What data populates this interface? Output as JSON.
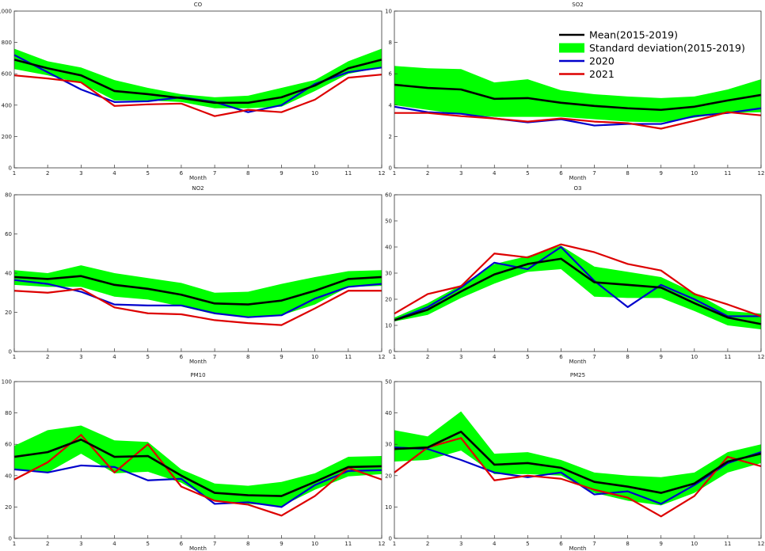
{
  "figure": {
    "colors": {
      "mean": "#000000",
      "band": "#00ff00",
      "y2020": "#0000cc",
      "y2021": "#dd0000"
    },
    "legend": {
      "placement": "top-right of SO2 panel",
      "entries": [
        {
          "key": "mean",
          "label": "Mean(2015-2019)"
        },
        {
          "key": "band",
          "label": "Standard deviation(2015-2019)"
        },
        {
          "key": "y2020",
          "label": "2020"
        },
        {
          "key": "y2021",
          "label": "2021"
        }
      ]
    }
  },
  "chart_data": [
    {
      "type": "line",
      "title": "CO",
      "xlabel": "Month",
      "ylabel": "",
      "x": [
        1,
        2,
        3,
        4,
        5,
        6,
        7,
        8,
        9,
        10,
        11,
        12
      ],
      "ylim": [
        0,
        1000
      ],
      "yticks": [
        0,
        200,
        400,
        600,
        800,
        1000
      ],
      "grid": false,
      "mean": [
        690,
        635,
        590,
        490,
        470,
        445,
        415,
        415,
        450,
        525,
        635,
        690
      ],
      "sd_upper": [
        760,
        680,
        640,
        560,
        510,
        470,
        450,
        460,
        510,
        560,
        680,
        760
      ],
      "sd_lower": [
        630,
        590,
        540,
        430,
        430,
        420,
        380,
        380,
        390,
        490,
        600,
        640
      ],
      "series": [
        {
          "name": "2020",
          "values": [
            720,
            610,
            500,
            420,
            425,
            450,
            420,
            355,
            400,
            535,
            610,
            640
          ]
        },
        {
          "name": "2021",
          "values": [
            590,
            570,
            545,
            395,
            405,
            410,
            330,
            370,
            355,
            435,
            575,
            595
          ]
        }
      ]
    },
    {
      "type": "line",
      "title": "SO2",
      "xlabel": "Month",
      "ylabel": "",
      "x": [
        1,
        2,
        3,
        4,
        5,
        6,
        7,
        8,
        9,
        10,
        11,
        12
      ],
      "ylim": [
        0,
        10
      ],
      "yticks": [
        0,
        2,
        4,
        6,
        8,
        10
      ],
      "grid": false,
      "mean": [
        5.3,
        5.1,
        5.0,
        4.4,
        4.45,
        4.15,
        3.95,
        3.8,
        3.7,
        3.9,
        4.3,
        4.65
      ],
      "sd_upper": [
        6.5,
        6.35,
        6.3,
        5.45,
        5.65,
        4.95,
        4.7,
        4.55,
        4.45,
        4.55,
        5.0,
        5.65
      ],
      "sd_lower": [
        4.0,
        3.7,
        3.4,
        3.25,
        3.25,
        3.25,
        3.1,
        2.95,
        2.9,
        3.2,
        3.5,
        3.55
      ],
      "series": [
        {
          "name": "2020",
          "values": [
            3.9,
            3.55,
            3.45,
            3.15,
            2.9,
            3.1,
            2.7,
            2.8,
            2.8,
            3.3,
            3.5,
            3.8
          ]
        },
        {
          "name": "2021",
          "values": [
            3.5,
            3.5,
            3.3,
            3.15,
            2.95,
            3.15,
            2.95,
            2.85,
            2.5,
            3.0,
            3.55,
            3.35
          ]
        }
      ]
    },
    {
      "type": "line",
      "title": "NO2",
      "xlabel": "Month",
      "ylabel": "",
      "x": [
        1,
        2,
        3,
        4,
        5,
        6,
        7,
        8,
        9,
        10,
        11,
        12
      ],
      "ylim": [
        0,
        80
      ],
      "yticks": [
        0,
        20,
        40,
        60,
        80
      ],
      "grid": false,
      "mean": [
        38,
        37,
        38.5,
        34,
        32,
        29,
        24.5,
        24,
        26,
        31,
        37,
        38
      ],
      "sd_upper": [
        41.5,
        40,
        44,
        40,
        37.5,
        35,
        30,
        30.5,
        34.5,
        38,
        41,
        41.5
      ],
      "sd_lower": [
        34,
        33,
        33,
        28,
        26.5,
        23,
        19,
        18,
        18.5,
        24,
        33,
        33.5
      ],
      "series": [
        {
          "name": "2020",
          "values": [
            36.5,
            34.5,
            30.5,
            24,
            23.5,
            23.5,
            19.5,
            17.5,
            18.5,
            27,
            33,
            34.5
          ]
        },
        {
          "name": "2021",
          "values": [
            31,
            30,
            32,
            22.5,
            19.5,
            19,
            16,
            14.5,
            13.5,
            22,
            31,
            31
          ]
        }
      ]
    },
    {
      "type": "line",
      "title": "O3",
      "xlabel": "Month",
      "ylabel": "",
      "x": [
        1,
        2,
        3,
        4,
        5,
        6,
        7,
        8,
        9,
        10,
        11,
        12
      ],
      "ylim": [
        0,
        60
      ],
      "yticks": [
        0,
        10,
        20,
        30,
        40,
        50,
        60
      ],
      "grid": false,
      "mean": [
        12,
        16,
        23,
        29.5,
        33.5,
        35.5,
        26.5,
        25.5,
        24.5,
        18.5,
        13,
        10.5
      ],
      "sd_upper": [
        13,
        18.5,
        25.5,
        33.5,
        36.5,
        40.5,
        32.5,
        30.5,
        28.5,
        22.5,
        15.5,
        14.5
      ],
      "sd_lower": [
        11.5,
        14,
        20.5,
        26,
        30.5,
        31.5,
        21,
        20.5,
        20.5,
        15.5,
        10,
        8.5
      ],
      "series": [
        {
          "name": "2020",
          "values": [
            12,
            17,
            24.5,
            34,
            31.5,
            40,
            27,
            17,
            25.5,
            20,
            13.5,
            13.5
          ]
        },
        {
          "name": "2021",
          "values": [
            14.5,
            22,
            25,
            37.5,
            36,
            41,
            38,
            33.5,
            31,
            22,
            18,
            13.5
          ]
        }
      ]
    },
    {
      "type": "line",
      "title": "PM10",
      "xlabel": "Month",
      "ylabel": "",
      "x": [
        1,
        2,
        3,
        4,
        5,
        6,
        7,
        8,
        9,
        10,
        11,
        12
      ],
      "ylim": [
        0,
        100
      ],
      "yticks": [
        0,
        20,
        40,
        60,
        80,
        100
      ],
      "grid": false,
      "mean": [
        52,
        55,
        63,
        52,
        52.5,
        40,
        29,
        27.5,
        27,
        36,
        45.5,
        46
      ],
      "sd_upper": [
        59,
        69,
        72,
        62.5,
        61.5,
        44,
        35,
        33.5,
        36,
        41.5,
        52,
        52.5
      ],
      "sd_lower": [
        44.5,
        42,
        54,
        41.5,
        42.5,
        35.5,
        23.5,
        22,
        20.5,
        31,
        39.5,
        41
      ],
      "series": [
        {
          "name": "2020",
          "values": [
            44,
            42,
            46.5,
            45.5,
            37,
            38,
            22,
            23,
            20,
            34,
            43,
            43.5
          ]
        },
        {
          "name": "2021",
          "values": [
            37.5,
            48.5,
            66,
            42,
            60,
            33,
            24,
            21.5,
            14.5,
            27,
            45,
            37.5
          ]
        }
      ]
    },
    {
      "type": "line",
      "title": "PM25",
      "xlabel": "Month",
      "ylabel": "",
      "x": [
        1,
        2,
        3,
        4,
        5,
        6,
        7,
        8,
        9,
        10,
        11,
        12
      ],
      "ylim": [
        0,
        50
      ],
      "yticks": [
        0,
        10,
        20,
        30,
        40,
        50
      ],
      "grid": false,
      "mean": [
        28.5,
        29,
        34,
        23.5,
        24,
        22.5,
        18,
        16.5,
        14.5,
        17.5,
        24.5,
        27
      ],
      "sd_upper": [
        34.5,
        32.5,
        40.5,
        27,
        27.5,
        25,
        21,
        20,
        19.5,
        21,
        27.5,
        30
      ],
      "sd_lower": [
        24.5,
        25,
        28,
        20.5,
        20.5,
        20,
        14.5,
        12,
        10.5,
        14.5,
        21,
        24
      ],
      "series": [
        {
          "name": "2020",
          "values": [
            29,
            28.5,
            25,
            21,
            19.5,
            21,
            14,
            15,
            11,
            17,
            24,
            27.5
          ]
        },
        {
          "name": "2021",
          "values": [
            21,
            29,
            32,
            18.5,
            20,
            19,
            15.5,
            13,
            7,
            13.5,
            26,
            23
          ]
        }
      ]
    }
  ]
}
